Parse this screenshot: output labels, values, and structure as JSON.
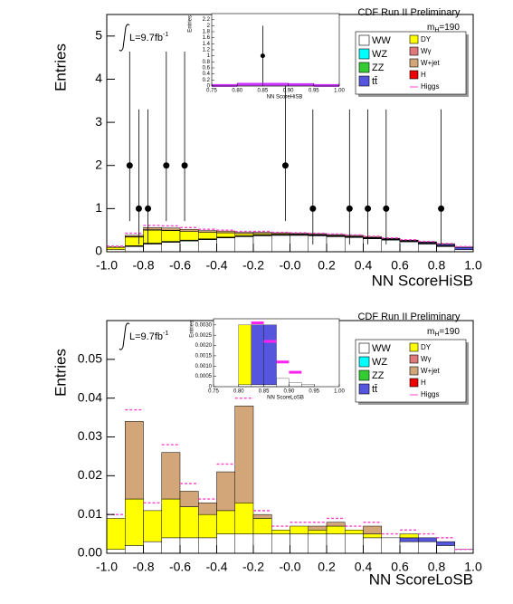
{
  "chart_data": [
    {
      "type": "histogram",
      "header": "CDF Run II Preliminary",
      "mass_label": [
        "m",
        "H",
        "=190"
      ],
      "lumi_label": [
        "L=9.7fb",
        "-1"
      ],
      "xlabel": "NN ScoreHiSB",
      "ylabel": "Entries",
      "bins": [
        -1,
        -0.9,
        -0.8,
        -0.7,
        -0.6,
        -0.5,
        -0.4,
        -0.3,
        -0.2,
        -0.1,
        0,
        0.1,
        0.2,
        0.3,
        0.4,
        0.5,
        0.6,
        0.7,
        0.8,
        0.9,
        1
      ],
      "xlim": [
        -1,
        1
      ],
      "xticks": [
        {
          "value": -1,
          "label": "-1.0"
        },
        -0.8,
        -0.6,
        -0.4,
        -0.2,
        {
          "value": 0,
          "label": "-0.0"
        },
        0.2,
        0.4,
        0.6,
        0.8,
        {
          "value": 1,
          "label": "1.0"
        }
      ],
      "ylim": [
        0,
        5.5
      ],
      "yticks": [
        0,
        1,
        2,
        3,
        4,
        5
      ],
      "series": [
        {
          "name": "WW",
          "color": "#ffffff",
          "values": [
            0.05,
            0.12,
            0.18,
            0.22,
            0.25,
            0.28,
            0.32,
            0.35,
            0.37,
            0.38,
            0.38,
            0.37,
            0.35,
            0.33,
            0.3,
            0.27,
            0.23,
            0.18,
            0.12,
            0.05
          ]
        },
        {
          "name": "WZ",
          "color": "#00ffff",
          "values": [
            0,
            0.01,
            0.01,
            0.01,
            0.01,
            0.01,
            0.01,
            0.01,
            0.01,
            0.01,
            0.01,
            0.01,
            0.01,
            0.01,
            0.01,
            0.01,
            0.01,
            0.01,
            0.01,
            0
          ]
        },
        {
          "name": "ZZ",
          "color": "#33cc33",
          "values": [
            0,
            0.01,
            0.01,
            0.01,
            0.01,
            0.01,
            0.01,
            0.01,
            0.01,
            0.01,
            0.01,
            0.01,
            0.01,
            0.01,
            0.01,
            0.01,
            0.01,
            0.01,
            0.01,
            0
          ]
        },
        {
          "name": "tt̄",
          "color": "#5555dd",
          "values": [
            0,
            0,
            0,
            0,
            0,
            0,
            0,
            0,
            0,
            0,
            0,
            0,
            0,
            0,
            0,
            0.01,
            0.01,
            0.02,
            0.03,
            0.05
          ]
        },
        {
          "name": "DY",
          "color": "#ffff00",
          "values": [
            0.05,
            0.2,
            0.3,
            0.25,
            0.2,
            0.15,
            0.1,
            0.05,
            0.03,
            0.02,
            0.01,
            0.01,
            0.01,
            0.01,
            0.01,
            0,
            0,
            0,
            0,
            0
          ]
        },
        {
          "name": "Wγ",
          "color": "#e07a7a",
          "values": [
            0,
            0.01,
            0.01,
            0.01,
            0,
            0,
            0,
            0,
            0,
            0,
            0,
            0,
            0,
            0,
            0,
            0,
            0,
            0,
            0,
            0
          ]
        },
        {
          "name": "W+jet",
          "color": "#d2a679",
          "values": [
            0.02,
            0.03,
            0.05,
            0.05,
            0.05,
            0.04,
            0.04,
            0.03,
            0.03,
            0.02,
            0.02,
            0.02,
            0.02,
            0.02,
            0.02,
            0.01,
            0.01,
            0.01,
            0.01,
            0.01
          ]
        },
        {
          "name": "H",
          "color": "#ee0000",
          "values": [
            0,
            0,
            0,
            0,
            0,
            0,
            0,
            0,
            0,
            0,
            0,
            0,
            0,
            0,
            0,
            0,
            0,
            0,
            0,
            0
          ]
        }
      ],
      "signal": {
        "name": "Higgs",
        "color": "#ff44cc",
        "stacked": true,
        "values": [
          0.01,
          0.05,
          0.05,
          0.05,
          0.04,
          0.03,
          0.02,
          0.02,
          0.02,
          0.01,
          0.01,
          0.01,
          0.01,
          0.01,
          0.01,
          0.01,
          0.01,
          0.01,
          0.01,
          0.01
        ]
      },
      "data_points": {
        "x": [
          -0.875,
          -0.825,
          -0.775,
          -0.675,
          -0.575,
          -0.025,
          0.125,
          0.325,
          0.425,
          0.525,
          0.825
        ],
        "y": [
          2,
          1,
          1,
          2,
          2,
          2,
          1,
          1,
          1,
          1,
          1
        ],
        "err_low": [
          1.29,
          0.83,
          0.83,
          1.29,
          1.29,
          1.29,
          0.83,
          0.83,
          0.83,
          0.83,
          0.83
        ],
        "err_high": [
          2.64,
          2.3,
          2.3,
          2.64,
          2.64,
          2.64,
          2.3,
          2.3,
          2.3,
          2.3,
          2.3
        ]
      },
      "inset": {
        "xlabel": "NN ScoreHiSB",
        "ylabel": "Entries",
        "bins": [
          0.75,
          0.8,
          0.85,
          0.9,
          0.95,
          1
        ],
        "xlim": [
          0.75,
          1
        ],
        "xticks": [
          0.75,
          {
            "value": 0.8,
            "label": "0.80"
          },
          0.85,
          {
            "value": 0.9,
            "label": "0.90"
          },
          0.95,
          {
            "value": 1,
            "label": "1.00"
          }
        ],
        "ylim": [
          0,
          2.4
        ],
        "yticks": [
          0,
          0.2,
          0.4,
          0.6,
          0.8,
          1,
          1.2,
          1.4,
          1.6,
          1.8,
          2,
          2.2
        ],
        "series": [
          {
            "color": "#ffffff",
            "values": [
              0.01,
              0.04,
              0.04,
              0.03,
              0.01
            ]
          },
          {
            "color": "#ffff00",
            "values": [
              0,
              0.01,
              0.01,
              0,
              0
            ]
          },
          {
            "color": "#d2a679",
            "values": [
              0,
              0.01,
              0.01,
              0.01,
              0
            ]
          }
        ],
        "signal": {
          "color": "#cc33ff",
          "stacked": false,
          "values": [
            0.02,
            0.06,
            0.06,
            0.05,
            0.02
          ]
        },
        "data_points": {
          "x": [
            0.85
          ],
          "y": [
            1
          ],
          "err_low": [
            0.9
          ],
          "err_high": [
            1.0
          ]
        }
      }
    },
    {
      "type": "histogram",
      "header": "CDF Run II Preliminary",
      "mass_label": [
        "m",
        "H",
        "=190"
      ],
      "lumi_label": [
        "L=9.7fb",
        "-1"
      ],
      "xlabel": "NN ScoreLoSB",
      "ylabel": "Entries",
      "bins": [
        -1,
        -0.9,
        -0.8,
        -0.7,
        -0.6,
        -0.5,
        -0.4,
        -0.3,
        -0.2,
        -0.1,
        0,
        0.1,
        0.2,
        0.3,
        0.4,
        0.5,
        0.6,
        0.7,
        0.8,
        0.9,
        1
      ],
      "xlim": [
        -1,
        1
      ],
      "xticks": [
        {
          "value": -1,
          "label": "-1.0"
        },
        -0.8,
        -0.6,
        -0.4,
        -0.2,
        {
          "value": 0,
          "label": "-0.0"
        },
        0.2,
        0.4,
        0.6,
        0.8,
        {
          "value": 1,
          "label": "1.0"
        }
      ],
      "ylim": [
        0,
        0.06
      ],
      "yticks": [
        {
          "value": 0,
          "label": "0.00"
        },
        0.01,
        0.02,
        0.03,
        0.04,
        0.05
      ],
      "series": [
        {
          "name": "WW",
          "color": "#ffffff",
          "values": [
            0.001,
            0.002,
            0.003,
            0.004,
            0.004,
            0.004,
            0.005,
            0.005,
            0.005,
            0.005,
            0.005,
            0.005,
            0.005,
            0.005,
            0.004,
            0.004,
            0.003,
            0.003,
            0.002,
            0.001
          ]
        },
        {
          "name": "WZ",
          "color": "#00ffff",
          "values": [
            0,
            0,
            0,
            0,
            0,
            0,
            0,
            0,
            0,
            0,
            0,
            0,
            0,
            0,
            0,
            0,
            0,
            0,
            0,
            0
          ]
        },
        {
          "name": "ZZ",
          "color": "#33cc33",
          "values": [
            0,
            0,
            0,
            0,
            0,
            0,
            0,
            0,
            0,
            0,
            0,
            0,
            0,
            0,
            0,
            0,
            0,
            0,
            0,
            0
          ]
        },
        {
          "name": "tt̄",
          "color": "#5555dd",
          "values": [
            0,
            0,
            0,
            0,
            0,
            0,
            0,
            0,
            0,
            0,
            0,
            0,
            0,
            0,
            0,
            0,
            0.001,
            0.001,
            0.001,
            0
          ]
        },
        {
          "name": "DY",
          "color": "#ffff00",
          "values": [
            0.008,
            0.012,
            0.008,
            0.01,
            0.008,
            0.006,
            0.006,
            0.008,
            0.004,
            0.001,
            0.002,
            0.001,
            0.002,
            0.001,
            0.001,
            0,
            0.001,
            0,
            0,
            0
          ]
        },
        {
          "name": "Wγ",
          "color": "#e07a7a",
          "values": [
            0,
            0,
            0,
            0,
            0,
            0,
            0,
            0,
            0,
            0,
            0,
            0,
            0,
            0,
            0,
            0,
            0,
            0,
            0,
            0
          ]
        },
        {
          "name": "W+jet",
          "color": "#d2a679",
          "values": [
            0,
            0.02,
            0,
            0.012,
            0.004,
            0.003,
            0.01,
            0.025,
            0.001,
            0,
            0,
            0.001,
            0.001,
            0,
            0.002,
            0,
            0,
            0,
            0,
            0
          ]
        },
        {
          "name": "H",
          "color": "#ee0000",
          "values": [
            0,
            0,
            0,
            0,
            0,
            0,
            0,
            0,
            0,
            0,
            0,
            0,
            0,
            0,
            0,
            0,
            0,
            0,
            0,
            0
          ]
        }
      ],
      "signal": {
        "name": "Higgs",
        "color": "#ff44cc",
        "stacked": true,
        "values": [
          0.001,
          0.003,
          0.002,
          0.002,
          0.002,
          0.001,
          0.002,
          0.002,
          0.001,
          0.001,
          0.001,
          0.001,
          0.001,
          0.001,
          0.001,
          0.001,
          0.001,
          0.001,
          0.001,
          0
        ]
      },
      "inset": {
        "xlabel": "NN ScoreLoSB",
        "ylabel": "Entries",
        "bins": [
          0.75,
          0.775,
          0.8,
          0.825,
          0.85,
          0.875,
          0.9,
          0.925,
          0.95,
          0.975,
          1
        ],
        "xlim": [
          0.75,
          1
        ],
        "xticks": [
          0.75,
          {
            "value": 0.8,
            "label": "0.80"
          },
          0.85,
          {
            "value": 0.9,
            "label": "0.90"
          },
          0.95,
          {
            "value": 1,
            "label": "1.00"
          }
        ],
        "ylim": [
          0,
          0.0033
        ],
        "yticks": [
          0,
          0.0005,
          {
            "value": 0.001,
            "label": "0.0010"
          },
          0.0015,
          {
            "value": 0.002,
            "label": "0.0020"
          },
          0.0025,
          {
            "value": 0.003,
            "label": "0.0030"
          }
        ],
        "series": [
          {
            "color": "#ffffff",
            "values": [
              0,
              0,
              0.0001,
              0.0001,
              0.0001,
              0.0004,
              0.0002,
              0.0001,
              0,
              0
            ]
          },
          {
            "color": "#5555dd",
            "values": [
              0,
              0,
              0,
              0.0029,
              0.0029,
              0,
              0,
              0,
              0,
              0
            ]
          },
          {
            "color": "#ffff00",
            "values": [
              0,
              0,
              0.0029,
              0,
              0,
              0,
              0,
              0,
              0,
              0
            ]
          }
        ],
        "signal": {
          "color": "#ff22ee",
          "stacked": false,
          "values": [
            null,
            null,
            null,
            0.0031,
            0.0022,
            0.0012,
            0.0007,
            null,
            null,
            null
          ]
        }
      }
    }
  ]
}
